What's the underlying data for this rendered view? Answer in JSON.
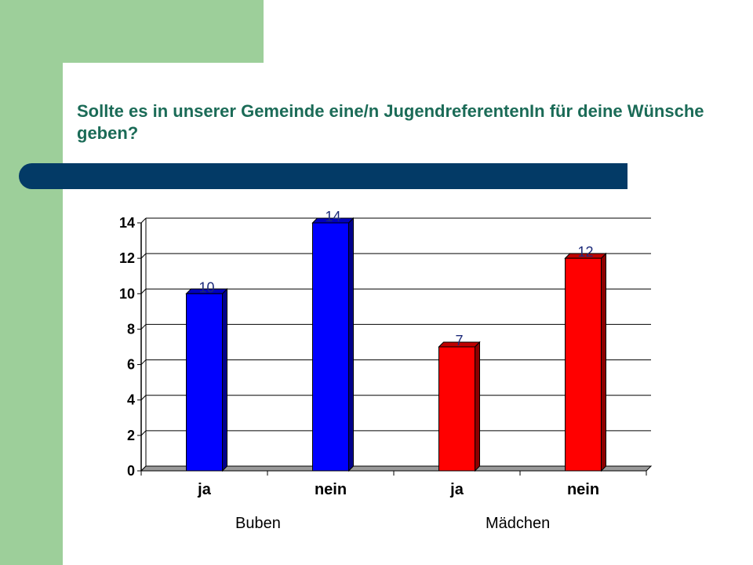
{
  "title": "Sollte es in unserer Gemeinde eine/n JugendreferentenIn für deine Wünsche geben?",
  "colors": {
    "green_band": "#9dcf9a",
    "title_text": "#1b6b57",
    "title_bar": "#033a66",
    "series_buben": "#0000ff",
    "series_maedchen": "#ff0000",
    "data_label": "#1c2a7a"
  },
  "chart_data": {
    "type": "bar",
    "title": "",
    "xlabel": "",
    "ylabel": "",
    "ylim": [
      0,
      14
    ],
    "yticks": [
      0,
      2,
      4,
      6,
      8,
      10,
      12,
      14
    ],
    "grid": true,
    "style": "3d-bars",
    "categories": [
      "ja",
      "nein",
      "ja",
      "nein"
    ],
    "values": [
      10,
      14,
      7,
      12
    ],
    "data_labels": [
      "10",
      "14",
      "7",
      "12"
    ],
    "groups": [
      {
        "name": "Buben",
        "categories": [
          "ja",
          "nein"
        ],
        "values": [
          10,
          14
        ],
        "color": "#0000ff"
      },
      {
        "name": "Mädchen",
        "categories": [
          "ja",
          "nein"
        ],
        "values": [
          7,
          12
        ],
        "color": "#ff0000"
      }
    ]
  }
}
